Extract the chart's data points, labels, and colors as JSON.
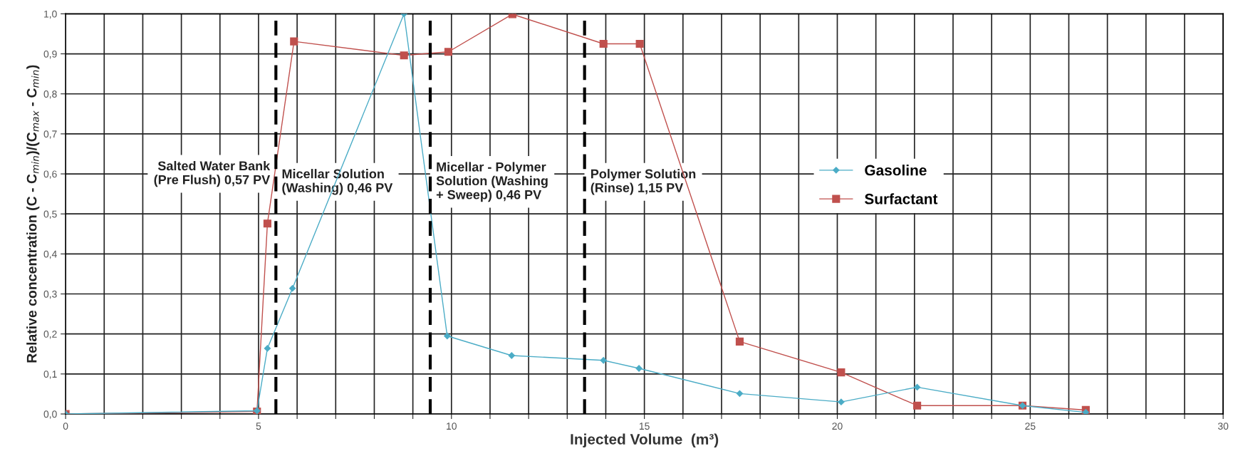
{
  "chart_data": {
    "type": "line",
    "xlabel": "Injected Volume  (m³)",
    "ylabel": "Relative concentration (C - C$_{min}$)/(C$_{max}$ - C$_{min}$)",
    "series": [
      {
        "name": "Gasoline",
        "color": "#4bacc6",
        "marker": "diamond",
        "x": [
          0,
          4.96,
          5.23,
          5.88,
          8.77,
          9.89,
          11.56,
          13.94,
          14.86,
          17.47,
          20.1,
          22.07,
          24.8,
          26.44
        ],
        "values": [
          0,
          0.008,
          0.164,
          0.314,
          1.0,
          0.195,
          0.146,
          0.134,
          0.114,
          0.051,
          0.03,
          0.067,
          0.021,
          0.004
        ]
      },
      {
        "name": "Surfactant",
        "color": "#c0504d",
        "marker": "square",
        "x": [
          0,
          4.96,
          5.23,
          5.92,
          8.77,
          9.92,
          11.58,
          13.94,
          14.88,
          17.47,
          20.1,
          22.07,
          24.8,
          26.44
        ],
        "values": [
          0,
          0.006,
          0.476,
          0.931,
          0.896,
          0.905,
          0.999,
          0.925,
          0.925,
          0.181,
          0.104,
          0.021,
          0.021,
          0.01
        ]
      }
    ],
    "ref_lines": [
      {
        "axis": "x",
        "value": 5.45,
        "label": "Micellar Solution\n(Washing) 0,46 PV",
        "color": "#000000",
        "line_style": "dashed"
      },
      {
        "axis": "x",
        "value": 9.45,
        "label": "Micellar - Polymer\nSolution (Washing\n+ Sweep) 0,46 PV",
        "color": "#000000",
        "line_style": "dashed"
      },
      {
        "axis": "x",
        "value": 13.45,
        "label": "Polymer Solution\n(Rinse) 1,15 PV",
        "color": "#000000",
        "line_style": "dashed"
      }
    ],
    "annotations": [
      "Salted Water Bank\n(Pre Flush) 0,57 PV"
    ],
    "xlim": [
      0,
      30
    ],
    "xticks": [
      0,
      {
        "value": 1,
        "label": null
      },
      {
        "value": 2,
        "label": null
      },
      {
        "value": 3,
        "label": null
      },
      {
        "value": 4,
        "label": null
      },
      5,
      {
        "value": 6,
        "label": null
      },
      {
        "value": 7,
        "label": null
      },
      {
        "value": 8,
        "label": null
      },
      {
        "value": 9,
        "label": null
      },
      10,
      {
        "value": 11,
        "label": null
      },
      {
        "value": 12,
        "label": null
      },
      {
        "value": 13,
        "label": null
      },
      {
        "value": 14,
        "label": null
      },
      15,
      {
        "value": 16,
        "label": null
      },
      {
        "value": 17,
        "label": null
      },
      {
        "value": 18,
        "label": null
      },
      {
        "value": 19,
        "label": null
      },
      20,
      {
        "value": 21,
        "label": null
      },
      {
        "value": 22,
        "label": null
      },
      {
        "value": 23,
        "label": null
      },
      {
        "value": 24,
        "label": null
      },
      25,
      {
        "value": 26,
        "label": null
      },
      {
        "value": 27,
        "label": null
      },
      {
        "value": 28,
        "label": null
      },
      {
        "value": 29,
        "label": null
      },
      30
    ],
    "ylim": [
      0,
      1.0
    ],
    "yticks": [
      {
        "value": 0,
        "label": "0,0"
      },
      {
        "value": 0.1,
        "label": "0,1"
      },
      {
        "value": 0.2,
        "label": "0,2"
      },
      {
        "value": 0.3,
        "label": "0,3"
      },
      {
        "value": 0.4,
        "label": "0,4"
      },
      {
        "value": 0.5,
        "label": "0,5"
      },
      {
        "value": 0.6,
        "label": "0,6"
      },
      {
        "value": 0.7,
        "label": "0,7"
      },
      {
        "value": 0.8,
        "label": "0,8"
      },
      {
        "value": 0.9,
        "label": "0,9"
      },
      {
        "value": 1.0,
        "label": "1,0"
      }
    ],
    "grid": true,
    "legend": "right",
    "line_style": "solid"
  }
}
